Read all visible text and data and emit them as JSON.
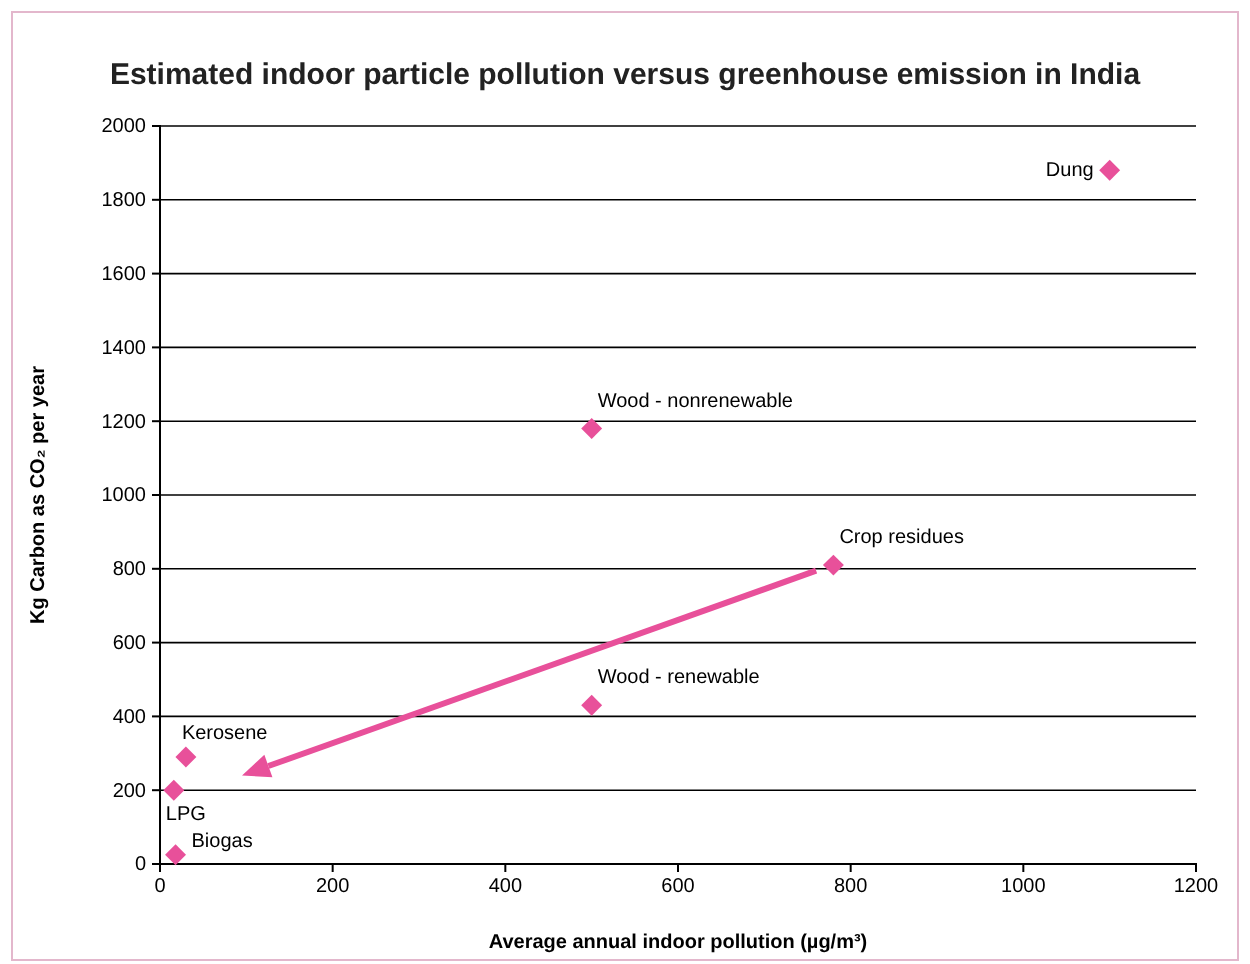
{
  "chart_data": {
    "type": "scatter",
    "title": "Estimated indoor particle pollution versus greenhouse emission in India",
    "xlabel": "Average annual indoor pollution (µg/m³)",
    "ylabel": "Kg Carbon as CO₂ per year",
    "x": [
      1100,
      500,
      780,
      500,
      30,
      16,
      18
    ],
    "series": [
      {
        "color": "#e8509a",
        "values": [
          1880,
          1180,
          810,
          430,
          290,
          200,
          25
        ]
      }
    ],
    "xlim": [
      0,
      1200
    ],
    "xticks": [
      0,
      200,
      400,
      600,
      800,
      1000,
      1200
    ],
    "ylim": [
      0,
      2000
    ],
    "yticks": [
      0,
      200,
      400,
      600,
      800,
      1000,
      1200,
      1400,
      1600,
      1800,
      2000
    ],
    "grid": "y",
    "marker": "diamond",
    "annotations": [
      {
        "text": "Dung",
        "x": 1100,
        "y": 1880
      },
      {
        "text": "Wood - nonrenewable",
        "x": 500,
        "y": 1180
      },
      {
        "text": "Crop residues",
        "x": 780,
        "y": 810
      },
      {
        "text": "Wood - renewable",
        "x": 500,
        "y": 430
      },
      {
        "text": "Kerosene",
        "x": 30,
        "y": 290
      },
      {
        "text": "LPG",
        "x": 16,
        "y": 200
      },
      {
        "text": "Biogas",
        "x": 18,
        "y": 25
      }
    ]
  }
}
